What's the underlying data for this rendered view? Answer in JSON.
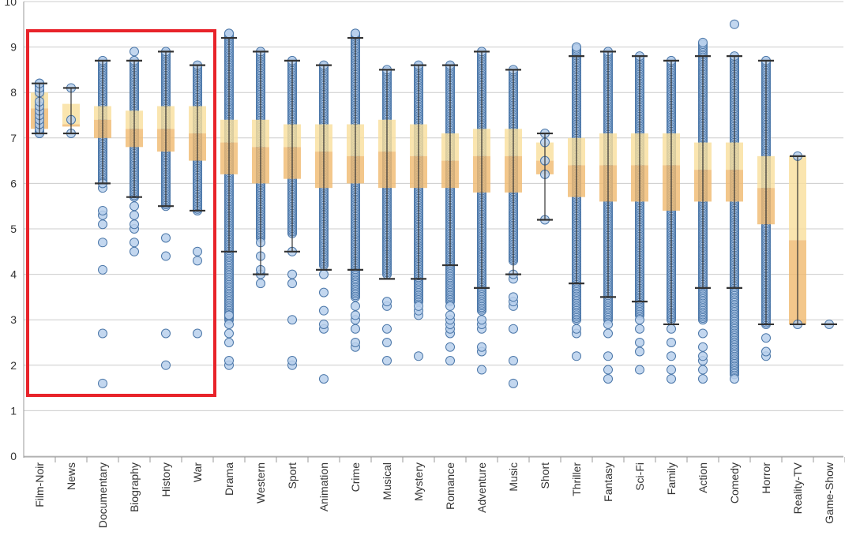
{
  "chart_data": {
    "type": "box",
    "title": "",
    "xlabel": "",
    "ylabel": "",
    "ylim": [
      0,
      10
    ],
    "yticks": [
      0,
      1,
      2,
      3,
      4,
      5,
      6,
      7,
      8,
      9,
      10
    ],
    "grid": true,
    "colors": {
      "point_fill": "#b9d0ec",
      "point_stroke": "#4a76a8",
      "box_upper": "#f9df9d",
      "box_lower": "#f0bb72",
      "whisker": "#333333",
      "grid": "#cccccc",
      "highlight": "#e8232a"
    },
    "highlight_categories": [
      "Film-Noir",
      "News",
      "Documentary",
      "Biography",
      "History",
      "War"
    ],
    "categories": [
      {
        "name": "Film-Noir",
        "whisker_low": 7.1,
        "q1": 7.2,
        "median": 7.65,
        "q3": 8.0,
        "whisker_high": 8.2,
        "dense_range": [
          7.1,
          8.2
        ],
        "outliers": [
          7.1,
          7.2,
          7.3,
          7.4,
          7.5,
          7.6,
          7.7,
          7.8,
          8.0,
          8.1,
          8.2
        ]
      },
      {
        "name": "News",
        "whisker_low": 7.1,
        "q1": 7.25,
        "median": 7.3,
        "q3": 7.75,
        "whisker_high": 8.1,
        "dense_range": null,
        "outliers": [
          7.1,
          7.4,
          8.1
        ]
      },
      {
        "name": "Documentary",
        "whisker_low": 6.0,
        "q1": 7.0,
        "median": 7.4,
        "q3": 7.7,
        "whisker_high": 8.7,
        "dense_range": [
          6.0,
          8.7
        ],
        "outliers": [
          1.6,
          2.7,
          4.1,
          4.7,
          5.1,
          5.3,
          5.4,
          5.9,
          6.0
        ]
      },
      {
        "name": "Biography",
        "whisker_low": 5.7,
        "q1": 6.8,
        "median": 7.2,
        "q3": 7.6,
        "whisker_high": 8.7,
        "dense_range": [
          5.7,
          8.7
        ],
        "outliers": [
          4.5,
          4.7,
          5.0,
          5.1,
          5.3,
          5.5,
          8.9
        ]
      },
      {
        "name": "History",
        "whisker_low": 5.5,
        "q1": 6.7,
        "median": 7.2,
        "q3": 7.7,
        "whisker_high": 8.9,
        "dense_range": [
          5.5,
          8.9
        ],
        "outliers": [
          2.0,
          2.7,
          4.4,
          4.8
        ]
      },
      {
        "name": "War",
        "whisker_low": 5.4,
        "q1": 6.5,
        "median": 7.1,
        "q3": 7.7,
        "whisker_high": 8.6,
        "dense_range": [
          5.4,
          8.6
        ],
        "outliers": [
          2.7,
          4.3,
          4.5
        ]
      },
      {
        "name": "Drama",
        "whisker_low": 4.5,
        "q1": 6.2,
        "median": 6.9,
        "q3": 7.4,
        "whisker_high": 9.2,
        "dense_range": [
          3.0,
          9.3
        ],
        "outliers": [
          2.0,
          2.1,
          2.5,
          2.7,
          2.9,
          3.1,
          9.3
        ]
      },
      {
        "name": "Western",
        "whisker_low": 4.0,
        "q1": 6.0,
        "median": 6.8,
        "q3": 7.4,
        "whisker_high": 8.9,
        "dense_range": [
          4.8,
          8.9
        ],
        "outliers": [
          3.8,
          4.0,
          4.1,
          4.4,
          4.7
        ]
      },
      {
        "name": "Sport",
        "whisker_low": 4.5,
        "q1": 6.1,
        "median": 6.8,
        "q3": 7.3,
        "whisker_high": 8.7,
        "dense_range": [
          4.9,
          8.7
        ],
        "outliers": [
          2.0,
          2.1,
          3.0,
          3.8,
          4.0,
          4.5
        ]
      },
      {
        "name": "Animation",
        "whisker_low": 4.1,
        "q1": 5.9,
        "median": 6.7,
        "q3": 7.3,
        "whisker_high": 8.6,
        "dense_range": [
          4.2,
          8.6
        ],
        "outliers": [
          1.7,
          2.8,
          2.9,
          3.2,
          3.6,
          4.0
        ]
      },
      {
        "name": "Crime",
        "whisker_low": 4.1,
        "q1": 6.0,
        "median": 6.6,
        "q3": 7.3,
        "whisker_high": 9.2,
        "dense_range": [
          3.5,
          9.3
        ],
        "outliers": [
          2.4,
          2.5,
          2.8,
          3.0,
          3.1,
          3.3,
          9.3
        ]
      },
      {
        "name": "Musical",
        "whisker_low": 3.9,
        "q1": 5.9,
        "median": 6.7,
        "q3": 7.4,
        "whisker_high": 8.5,
        "dense_range": [
          4.0,
          8.5
        ],
        "outliers": [
          2.1,
          2.5,
          2.8,
          3.3,
          3.4
        ]
      },
      {
        "name": "Mystery",
        "whisker_low": 3.9,
        "q1": 5.9,
        "median": 6.6,
        "q3": 7.3,
        "whisker_high": 8.6,
        "dense_range": [
          3.4,
          8.6
        ],
        "outliers": [
          2.2,
          3.1,
          3.2,
          3.3
        ]
      },
      {
        "name": "Romance",
        "whisker_low": 4.2,
        "q1": 5.9,
        "median": 6.5,
        "q3": 7.1,
        "whisker_high": 8.6,
        "dense_range": [
          3.4,
          8.6
        ],
        "outliers": [
          2.1,
          2.4,
          2.7,
          2.8,
          2.9,
          3.0,
          3.1,
          3.3
        ]
      },
      {
        "name": "Adventure",
        "whisker_low": 3.7,
        "q1": 5.8,
        "median": 6.6,
        "q3": 7.2,
        "whisker_high": 8.9,
        "dense_range": [
          3.2,
          8.9
        ],
        "outliers": [
          1.9,
          2.3,
          2.4,
          2.8,
          2.9,
          3.0
        ]
      },
      {
        "name": "Music",
        "whisker_low": 4.0,
        "q1": 5.8,
        "median": 6.6,
        "q3": 7.2,
        "whisker_high": 8.5,
        "dense_range": [
          4.3,
          8.5
        ],
        "outliers": [
          1.6,
          2.1,
          2.8,
          3.3,
          3.4,
          3.5,
          3.9,
          4.0
        ]
      },
      {
        "name": "Short",
        "whisker_low": 5.2,
        "q1": 6.2,
        "median": 6.5,
        "q3": 6.9,
        "whisker_high": 7.1,
        "dense_range": null,
        "outliers": [
          5.2,
          6.2,
          6.5,
          6.9,
          7.1
        ]
      },
      {
        "name": "Thriller",
        "whisker_low": 3.8,
        "q1": 5.7,
        "median": 6.4,
        "q3": 7.0,
        "whisker_high": 8.8,
        "dense_range": [
          3.0,
          9.0
        ],
        "outliers": [
          2.2,
          2.7,
          2.8
        ]
      },
      {
        "name": "Fantasy",
        "whisker_low": 3.5,
        "q1": 5.6,
        "median": 6.4,
        "q3": 7.1,
        "whisker_high": 8.9,
        "dense_range": [
          3.0,
          8.9
        ],
        "outliers": [
          1.7,
          1.9,
          2.2,
          2.7,
          2.9
        ]
      },
      {
        "name": "Sci-Fi",
        "whisker_low": 3.4,
        "q1": 5.6,
        "median": 6.4,
        "q3": 7.1,
        "whisker_high": 8.8,
        "dense_range": [
          3.1,
          8.8
        ],
        "outliers": [
          1.9,
          2.3,
          2.5,
          2.8,
          3.0
        ]
      },
      {
        "name": "Family",
        "whisker_low": 2.9,
        "q1": 5.4,
        "median": 6.4,
        "q3": 7.1,
        "whisker_high": 8.7,
        "dense_range": [
          3.0,
          8.7
        ],
        "outliers": [
          1.7,
          1.9,
          2.2,
          2.5,
          2.8
        ]
      },
      {
        "name": "Action",
        "whisker_low": 3.7,
        "q1": 5.6,
        "median": 6.3,
        "q3": 6.9,
        "whisker_high": 8.8,
        "dense_range": [
          3.0,
          9.1
        ],
        "outliers": [
          1.7,
          1.9,
          2.1,
          2.2,
          2.4,
          2.7
        ]
      },
      {
        "name": "Comedy",
        "whisker_low": 3.7,
        "q1": 5.6,
        "median": 6.3,
        "q3": 6.9,
        "whisker_high": 8.8,
        "dense_range": [
          1.8,
          8.8
        ],
        "outliers": [
          1.7,
          9.5
        ]
      },
      {
        "name": "Horror",
        "whisker_low": 2.9,
        "q1": 5.1,
        "median": 5.9,
        "q3": 6.6,
        "whisker_high": 8.7,
        "dense_range": [
          2.9,
          8.7
        ],
        "outliers": [
          2.2,
          2.3,
          2.6
        ]
      },
      {
        "name": "Reality-TV",
        "whisker_low": 2.9,
        "q1": 2.9,
        "median": 4.75,
        "q3": 6.6,
        "whisker_high": 6.6,
        "dense_range": null,
        "outliers": [
          2.9,
          6.6
        ]
      },
      {
        "name": "Game-Show",
        "whisker_low": 2.9,
        "q1": 2.9,
        "median": 2.9,
        "q3": 2.9,
        "whisker_high": 2.9,
        "dense_range": null,
        "outliers": [
          2.9
        ]
      }
    ]
  }
}
